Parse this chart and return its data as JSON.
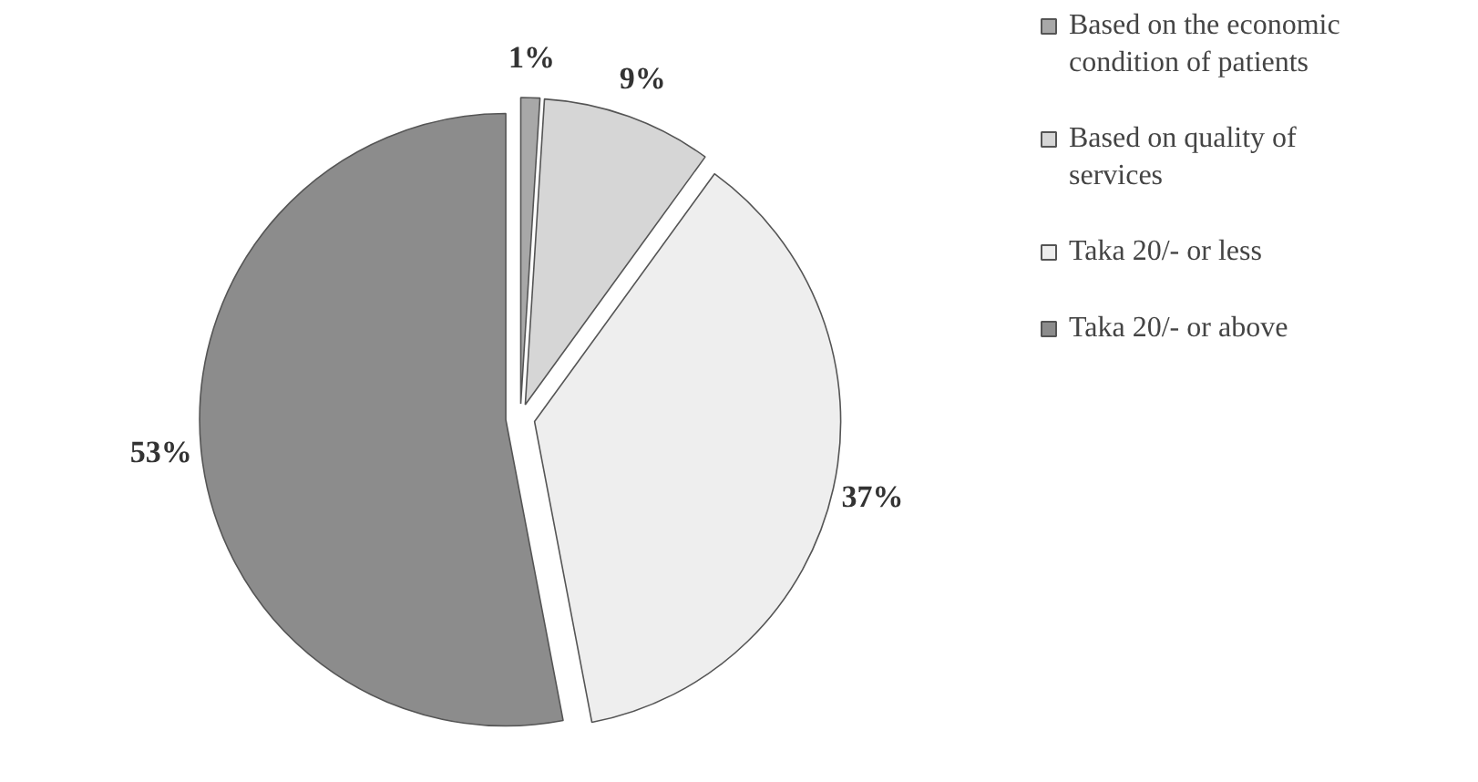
{
  "chart_data": {
    "type": "pie",
    "categories": [
      "Based on the economic condition of patients",
      "Based on quality of services",
      "Taka 20/- or less",
      "Taka 20/- or above"
    ],
    "values": [
      1,
      9,
      37,
      53
    ],
    "value_labels": [
      "1%",
      "9%",
      "37%",
      "53%"
    ],
    "colors": [
      "#a8a8a8",
      "#d6d6d6",
      "#eeeeee",
      "#8c8c8c"
    ],
    "legend": "right"
  }
}
